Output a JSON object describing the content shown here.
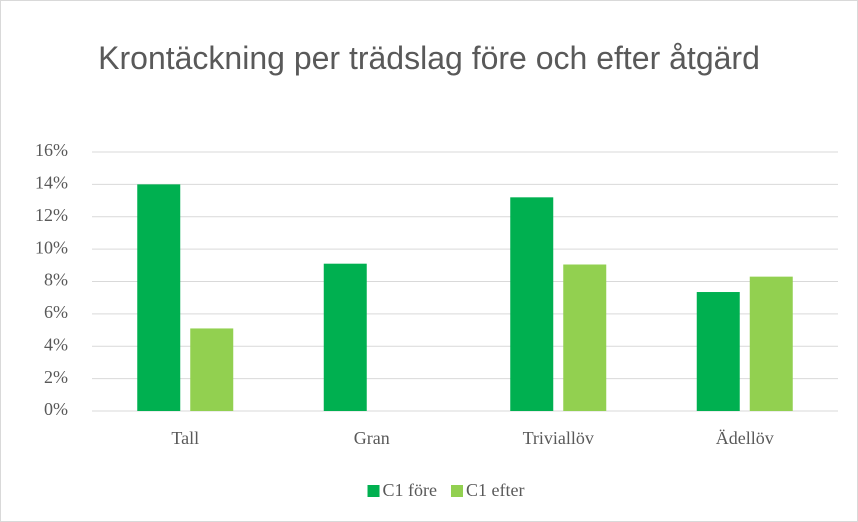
{
  "chart_data": {
    "type": "bar",
    "title": "Krontäckning per trädslag före och efter åtgärd",
    "categories": [
      "Tall",
      "Gran",
      "Triviallöv",
      "Ädellöv"
    ],
    "series": [
      {
        "name": "C1 före",
        "color": "#00b050",
        "values": [
          14,
          9.1,
          13.2,
          7.35
        ]
      },
      {
        "name": "C1 efter",
        "color": "#92d050",
        "values": [
          5.1,
          null,
          9.05,
          8.3
        ]
      }
    ],
    "ylim": [
      0,
      16
    ],
    "yticks": [
      {
        "value": 0,
        "label": "0%"
      },
      {
        "value": 2,
        "label": "2%"
      },
      {
        "value": 4,
        "label": "4%"
      },
      {
        "value": 6,
        "label": "6%"
      },
      {
        "value": 8,
        "label": "8%"
      },
      {
        "value": 10,
        "label": "10%"
      },
      {
        "value": 12,
        "label": "12%"
      },
      {
        "value": 14,
        "label": "14%"
      },
      {
        "value": 16,
        "label": "16%"
      }
    ],
    "grid": true,
    "legend": "bottom"
  }
}
